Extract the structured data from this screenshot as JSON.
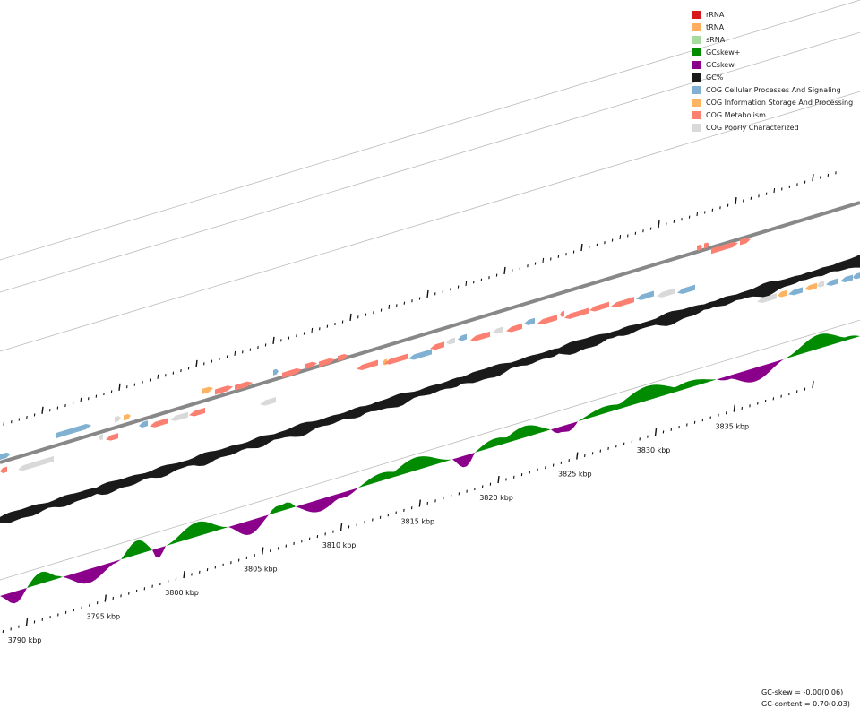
{
  "legend": [
    {
      "label": "rRNA",
      "color": "#d7191c"
    },
    {
      "label": "tRNA",
      "color": "#fdae61"
    },
    {
      "label": "sRNA",
      "color": "#a6dba0"
    },
    {
      "label": "GCskew+",
      "color": "#008b00"
    },
    {
      "label": "GCskew-",
      "color": "#8b008b"
    },
    {
      "label": "GC%",
      "color": "#1a1a1a"
    },
    {
      "label": "COG Cellular Processes And Signaling",
      "color": "#80b1d3"
    },
    {
      "label": "COG Information Storage And Processing",
      "color": "#fdb462"
    },
    {
      "label": "COG Metabolism",
      "color": "#fb8072"
    },
    {
      "label": "COG Poorly Characterized",
      "color": "#d9d9d9"
    }
  ],
  "scale": {
    "unit": "kbp",
    "labels": [
      "3790 kbp",
      "3795 kbp",
      "3800 kbp",
      "3805 kbp",
      "3810 kbp",
      "3815 kbp",
      "3820 kbp",
      "3825 kbp",
      "3830 kbp",
      "3835 kbp"
    ],
    "start_kbp": 3784,
    "end_kbp": 3840
  },
  "stats": {
    "gc_skew": "GC-skew = -0.00(0.06)",
    "gc_content": "GC-content = 0.70(0.03)"
  },
  "colors": {
    "axis": "#888888",
    "track_line": "#bbbbbb",
    "tick": "#111111"
  }
}
